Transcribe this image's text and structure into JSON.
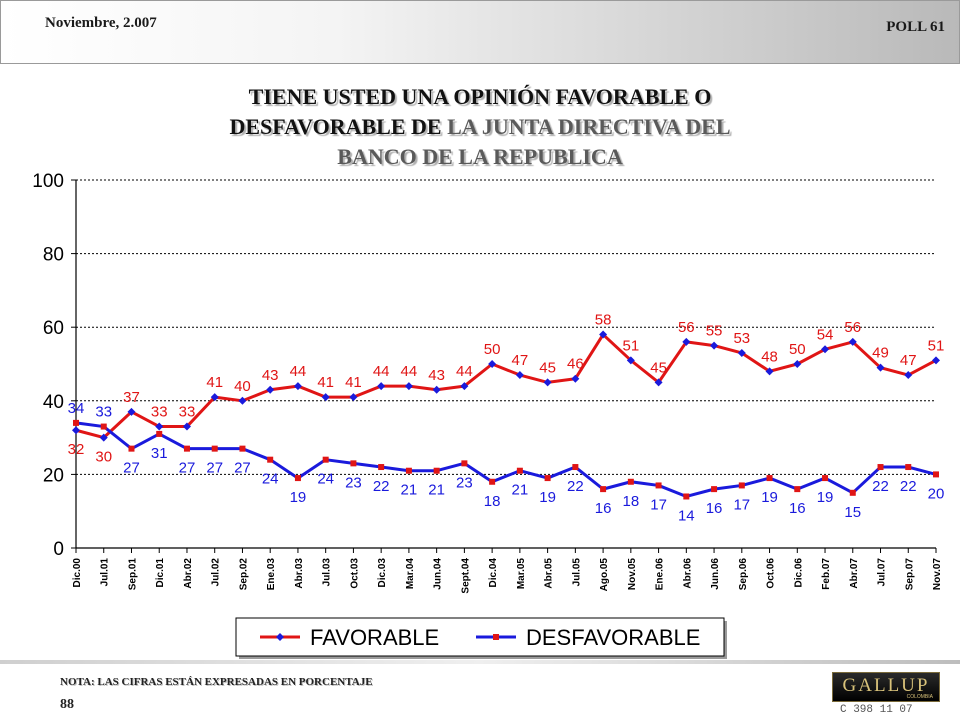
{
  "header": {
    "date": "Noviembre, 2.007",
    "poll": "POLL 61"
  },
  "title": {
    "line1": "TIENE USTED UNA OPINIÓN FAVORABLE O",
    "line2_a": "DESFAVORABLE DE ",
    "line2_b": "LA JUNTA DIRECTIVA DEL",
    "line3": "BANCO DE LA REPUBLICA"
  },
  "footer": {
    "note": "NOTA: LAS CIFRAS ESTÁN EXPRESADAS EN PORCENTAJE",
    "page": "88",
    "logo": "GALLUP",
    "logo_sub": "COLOMBIA",
    "code": "C 398 11 07"
  },
  "colors": {
    "favorable": "#e01515",
    "desfavorable": "#1a1adc",
    "marker_favorable": "#1a1adc",
    "marker_desfavorable": "#e01515"
  },
  "chart_data": {
    "type": "line",
    "title": "TIENE USTED UNA OPINIÓN FAVORABLE O DESFAVORABLE DE LA JUNTA DIRECTIVA DEL BANCO DE LA REPUBLICA",
    "categories": [
      "Dic.00",
      "Jul.01",
      "Sep.01",
      "Dic.01",
      "Abr.02",
      "Jul.02",
      "Sep.02",
      "Ene.03",
      "Abr.03",
      "Jul.03",
      "Oct.03",
      "Dic.03",
      "Mar.04",
      "Jun.04",
      "Sept.04",
      "Dic.04",
      "Mar.05",
      "Abr.05",
      "Jul.05",
      "Ago.05",
      "Nov.05",
      "Ene.06",
      "Abr.06",
      "Jun.06",
      "Sep.06",
      "Oct.06",
      "Dic.06",
      "Feb.07",
      "Abr.07",
      "Jul.07",
      "Sep.07",
      "Nov.07"
    ],
    "series": [
      {
        "name": "FAVORABLE",
        "values": [
          32,
          30,
          37,
          33,
          33,
          41,
          40,
          43,
          44,
          41,
          41,
          44,
          44,
          43,
          44,
          50,
          47,
          45,
          46,
          58,
          51,
          45,
          56,
          55,
          53,
          48,
          50,
          54,
          56,
          49,
          47,
          51
        ]
      },
      {
        "name": "DESFAVORABLE",
        "values": [
          34,
          33,
          27,
          31,
          27,
          27,
          27,
          24,
          19,
          24,
          23,
          22,
          21,
          21,
          23,
          18,
          21,
          19,
          22,
          16,
          18,
          17,
          14,
          16,
          17,
          19,
          16,
          19,
          15,
          22,
          22,
          20
        ]
      }
    ],
    "yticks": [
      0,
      20,
      40,
      60,
      80,
      100
    ],
    "ylim": [
      0,
      100
    ],
    "xlabel": "",
    "ylabel": "",
    "grid": true,
    "legend_position": "bottom"
  }
}
